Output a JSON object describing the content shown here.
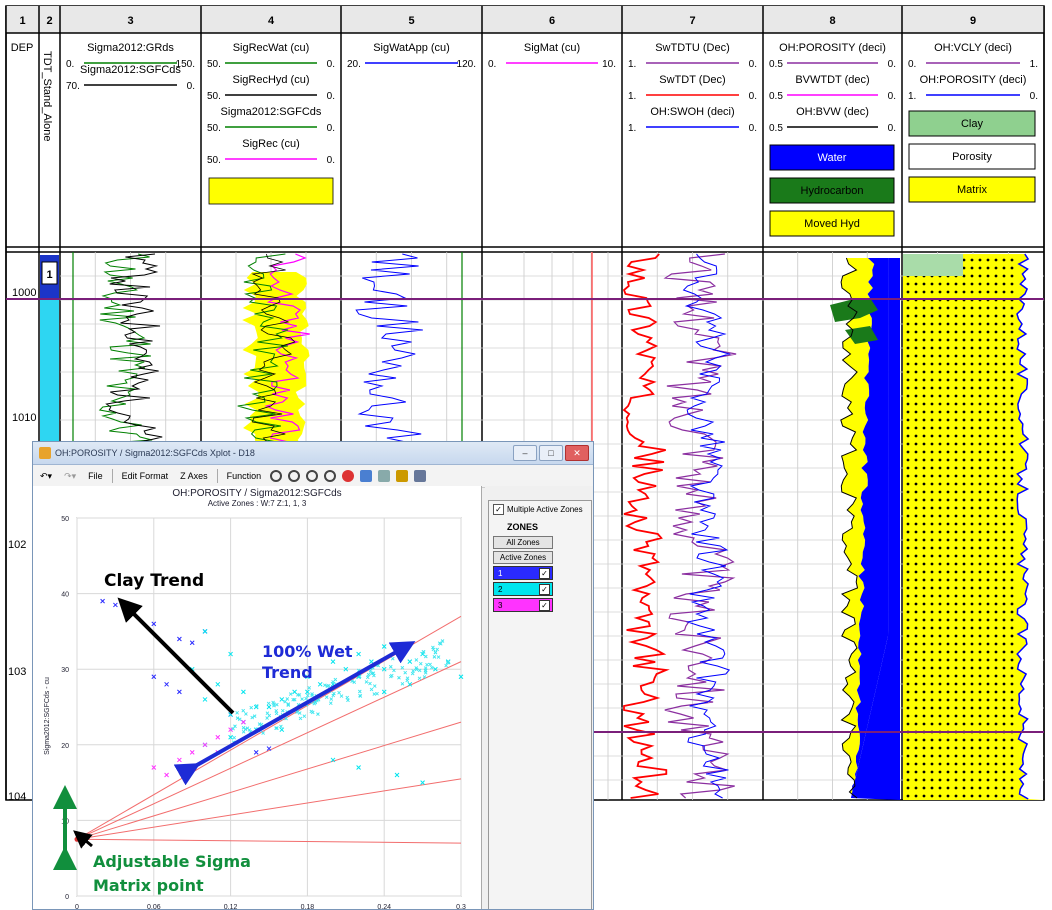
{
  "track_numbers": [
    "1",
    "2",
    "3",
    "4",
    "5",
    "6",
    "7",
    "8",
    "9"
  ],
  "track1": {
    "label": "DEP",
    "depth_labels": [
      "1000",
      "1010",
      "102",
      "103",
      "104"
    ]
  },
  "track2": {
    "label": "TDT_Stand_Alone",
    "zone_label": "1"
  },
  "track3": {
    "curves": [
      {
        "name": "Sigma2012:GRds",
        "left": "0.",
        "right": "150.",
        "color": "#008000"
      },
      {
        "name": "Sigma2012:SGFCds",
        "left": "70.",
        "right": "0.",
        "color": "#000000"
      }
    ]
  },
  "track4": {
    "curves": [
      {
        "name": "SigRecWat (cu)",
        "left": "50.",
        "right": "0.",
        "color": "#008000"
      },
      {
        "name": "SigRecHyd (cu)",
        "left": "50.",
        "right": "0.",
        "color": "#000000"
      },
      {
        "name": "Sigma2012:SGFCds",
        "left": "50.",
        "right": "0.",
        "color": "#008000"
      },
      {
        "name": "SigRec (cu)",
        "left": "50.",
        "right": "0.",
        "color": "#ff00ff"
      }
    ]
  },
  "track5": {
    "curves": [
      {
        "name": "SigWatApp (cu)",
        "left": "20.",
        "right": "120.",
        "color": "#0000ff"
      }
    ]
  },
  "track6": {
    "curves": [
      {
        "name": "SigMat (cu)",
        "left": "0.",
        "right": "10.",
        "color": "#ff00ff"
      }
    ]
  },
  "track7": {
    "curves": [
      {
        "name": "SwTDTU (Dec)",
        "left": "1.",
        "right": "0.",
        "color": "#8b2fa0"
      },
      {
        "name": "SwTDT (Dec)",
        "left": "1.",
        "right": "0.",
        "color": "#ff0000"
      },
      {
        "name": "OH:SWOH (deci)",
        "left": "1.",
        "right": "0.",
        "color": "#0000ff"
      }
    ]
  },
  "track8": {
    "curves": [
      {
        "name": "OH:POROSITY (deci)",
        "left": "0.5",
        "right": "0.",
        "color": "#8b2fa0"
      },
      {
        "name": "BVWTDT (dec)",
        "left": "0.5",
        "right": "0.",
        "color": "#ff00ff"
      },
      {
        "name": "OH:BVW (dec)",
        "left": "0.5",
        "right": "0.",
        "color": "#000000"
      }
    ],
    "legend": [
      {
        "label": "Water",
        "color": "#0000ff"
      },
      {
        "label": "Hydrocarbon",
        "color": "#1a7a1a"
      },
      {
        "label": "Moved Hyd",
        "color": "#ffff00"
      }
    ]
  },
  "track9": {
    "curves": [
      {
        "name": "OH:VCLY (deci)",
        "left": "0.",
        "right": "1.",
        "color": "#8b2fa0"
      },
      {
        "name": "OH:POROSITY (deci)",
        "left": "1.",
        "right": "0.",
        "color": "#0000ff"
      }
    ],
    "legend": [
      {
        "label": "Clay",
        "color": "#8fd08f"
      },
      {
        "label": "Porosity",
        "color": "#ffffff"
      },
      {
        "label": "Matrix",
        "color": "#ffff00"
      }
    ]
  },
  "xplot": {
    "window_title": "OH:POROSITY / Sigma2012:SGFCds Xplot  - D18",
    "toolbar": {
      "file": "File",
      "edit_format": "Edit Format",
      "z_axes": "Z Axes",
      "function": "Function"
    },
    "plot_title": "OH:POROSITY / Sigma2012:SGFCds",
    "active_zones": "Active Zones :   W:7 Z:1, 1, 3",
    "y_axis_label": "Sigma2012:SGFCds - cu",
    "y_ticks": [
      "0",
      "10",
      "20",
      "30",
      "40",
      "50"
    ],
    "x_ticks": [
      "0",
      "0.06",
      "0.12",
      "0.18",
      "0.24",
      "0.3"
    ],
    "multiple_active_zones": "Multiple Active Zones",
    "zones_title": "ZONES",
    "all_zones_button": "All Zones",
    "active_zones_button": "Active Zones",
    "zones": [
      {
        "label": "1",
        "color": "#2a2aff",
        "checked": "✓"
      },
      {
        "label": "2",
        "color": "#00e5ee",
        "checked": "✓"
      },
      {
        "label": "3",
        "color": "#ff33ff",
        "checked": "✓"
      }
    ]
  },
  "annotations": {
    "clay_trend": "Clay Trend",
    "wet_trend": "100% Wet Trend",
    "sigma_matrix": "Adjustable Sigma Matrix point"
  },
  "chart_data": {
    "type": "scatter",
    "x_axis": {
      "range": [
        0,
        0.3
      ],
      "ticks": [
        0,
        0.06,
        0.12,
        0.18,
        0.24,
        0.3
      ]
    },
    "y_axis": {
      "label": "Sigma2012:SGFCds - cu",
      "range": [
        0,
        50
      ],
      "ticks": [
        0,
        10,
        20,
        30,
        40,
        50
      ]
    },
    "matrix_point": {
      "x": 0,
      "y": 7.5
    },
    "fan_lines_end_y_at_x_0_3": [
      37,
      31,
      23,
      15.5,
      7
    ],
    "series": [
      {
        "name": "1",
        "color": "#2a2aff",
        "points": [
          [
            0.02,
            39
          ],
          [
            0.03,
            38.5
          ],
          [
            0.06,
            36
          ],
          [
            0.08,
            34
          ],
          [
            0.1,
            35
          ],
          [
            0.09,
            33.5
          ],
          [
            0.06,
            29
          ],
          [
            0.07,
            28
          ],
          [
            0.12,
            24
          ],
          [
            0.14,
            19
          ],
          [
            0.15,
            19.5
          ],
          [
            0.08,
            27
          ]
        ]
      },
      {
        "name": "2",
        "color": "#00e5ee",
        "points": [
          [
            0.1,
            26
          ],
          [
            0.12,
            24
          ],
          [
            0.13,
            23
          ],
          [
            0.14,
            25
          ],
          [
            0.16,
            26
          ],
          [
            0.18,
            27
          ],
          [
            0.2,
            28
          ],
          [
            0.22,
            29
          ],
          [
            0.24,
            30
          ],
          [
            0.26,
            31
          ],
          [
            0.27,
            32
          ],
          [
            0.25,
            33
          ],
          [
            0.23,
            31
          ],
          [
            0.21,
            30
          ],
          [
            0.19,
            28
          ],
          [
            0.17,
            27
          ],
          [
            0.15,
            25
          ],
          [
            0.28,
            30
          ],
          [
            0.26,
            28
          ],
          [
            0.24,
            27
          ],
          [
            0.12,
            21
          ],
          [
            0.1,
            20
          ],
          [
            0.14,
            22
          ],
          [
            0.2,
            18
          ],
          [
            0.22,
            17
          ],
          [
            0.25,
            16
          ],
          [
            0.27,
            15
          ],
          [
            0.1,
            35
          ],
          [
            0.12,
            32
          ],
          [
            0.09,
            30
          ],
          [
            0.22,
            32
          ],
          [
            0.24,
            33
          ],
          [
            0.2,
            31
          ],
          [
            0.18,
            29
          ],
          [
            0.16,
            22
          ],
          [
            0.3,
            29
          ],
          [
            0.29,
            31
          ],
          [
            0.13,
            27
          ],
          [
            0.11,
            28
          ]
        ]
      },
      {
        "name": "3",
        "color": "#ff33ff",
        "points": [
          [
            0.06,
            17
          ],
          [
            0.08,
            18
          ],
          [
            0.09,
            19
          ],
          [
            0.1,
            20
          ],
          [
            0.11,
            21
          ],
          [
            0.12,
            22
          ],
          [
            0.13,
            23
          ],
          [
            0.09,
            17
          ],
          [
            0.07,
            16
          ],
          [
            0.11,
            19
          ]
        ]
      }
    ]
  }
}
